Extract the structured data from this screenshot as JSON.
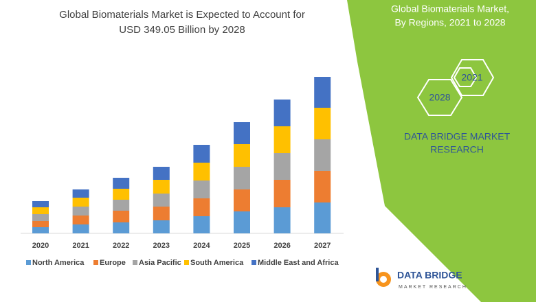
{
  "chart_data": {
    "type": "bar",
    "stacked": true,
    "title": [
      "Global Biomaterials Market is Expected to Account for",
      "USD 349.05 Billion by 2028"
    ],
    "categories": [
      "2020",
      "2021",
      "2022",
      "2023",
      "2024",
      "2025",
      "2026",
      "2027"
    ],
    "series": [
      {
        "name": "North America",
        "color": "#5b9bd5",
        "values": [
          9,
          13,
          16,
          19,
          25,
          32,
          38,
          45
        ]
      },
      {
        "name": "Europe",
        "color": "#ed7d31",
        "values": [
          9,
          13,
          17,
          20,
          26,
          32,
          40,
          46
        ]
      },
      {
        "name": "Asia Pacific",
        "color": "#a5a5a5",
        "values": [
          10,
          13,
          16,
          19,
          26,
          33,
          39,
          46
        ]
      },
      {
        "name": "South America",
        "color": "#ffc000",
        "values": [
          10,
          13,
          16,
          20,
          26,
          33,
          39,
          46
        ]
      },
      {
        "name": "Middle East and Africa",
        "color": "#4472c4",
        "values": [
          9,
          12,
          16,
          19,
          26,
          32,
          39,
          45
        ]
      }
    ]
  },
  "panel": {
    "title": [
      "Global Biomaterials Market,",
      "By Regions, 2021 to 2028"
    ],
    "hexagons": [
      "2021",
      "2028"
    ],
    "company": [
      "DATA BRIDGE MARKET",
      "RESEARCH"
    ]
  },
  "logo": {
    "name": "DATA BRIDGE",
    "tagline": "MARKET RESEARCH"
  }
}
